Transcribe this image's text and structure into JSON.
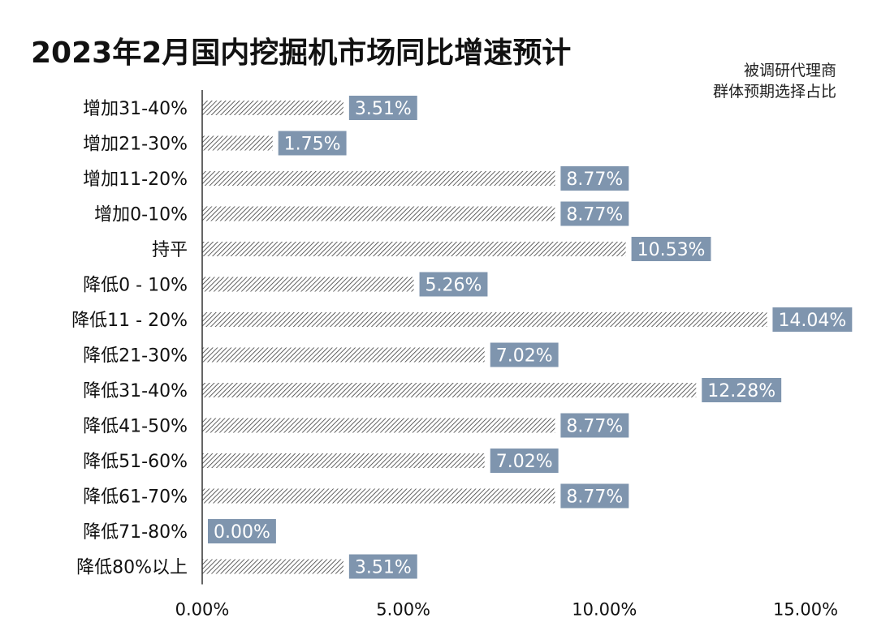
{
  "title": "2023年2月国内挖掘机市场同比增速预计",
  "note": {
    "line1": "被调研代理商",
    "line2": "群体预期选择占比"
  },
  "colors": {
    "bar_hatch": "#3a3a3a",
    "label_box": "#7f95ae",
    "label_text": "#ffffff",
    "axis": "#333333"
  },
  "chart_data": {
    "type": "bar",
    "orientation": "horizontal",
    "title": "2023年2月国内挖掘机市场同比增速预计",
    "categories": [
      "增加31-40%",
      "增加21-30%",
      "增加11-20%",
      "增加0-10%",
      "持平",
      "降低0 - 10%",
      "降低11 - 20%",
      "降低21-30%",
      "降低31-40%",
      "降低41-50%",
      "降低51-60%",
      "降低61-70%",
      "降低71-80%",
      "降低80%以上"
    ],
    "values": [
      3.51,
      1.75,
      8.77,
      8.77,
      10.53,
      5.26,
      14.04,
      7.02,
      12.28,
      8.77,
      7.02,
      8.77,
      0.0,
      3.51
    ],
    "data_labels": [
      "3.51%",
      "1.75%",
      "8.77%",
      "8.77%",
      "10.53%",
      "5.26%",
      "14.04%",
      "7.02%",
      "12.28%",
      "8.77%",
      "7.02%",
      "8.77%",
      "0.00%",
      "3.51%"
    ],
    "xticks": [
      "0.00%",
      "5.00%",
      "10.00%",
      "15.00%"
    ],
    "xtick_values": [
      0,
      5,
      10,
      15
    ],
    "xlim": [
      0,
      15
    ],
    "xlabel": "",
    "ylabel": "",
    "grid": false,
    "bar_fill": "hatched"
  }
}
